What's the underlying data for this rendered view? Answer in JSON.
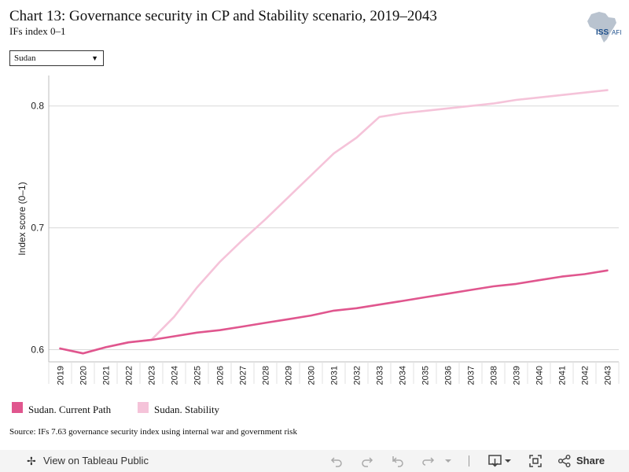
{
  "title": "Chart 13: Governance security in CP and Stability scenario, 2019–2043",
  "subtitle": "IFs index 0–1",
  "logo": {
    "text": "ISS",
    "text2": "AFI"
  },
  "country_select": {
    "value": "Sudan",
    "icon": "dropdown-arrow-icon"
  },
  "chart_data": {
    "type": "line",
    "ylabel": "Index score (0–1)",
    "xlabel": "",
    "ylim": [
      0.59,
      0.825
    ],
    "yticks": [
      0.6,
      0.7,
      0.8
    ],
    "ytick_labels": [
      "0.6",
      "0.7",
      "0.8"
    ],
    "grid": true,
    "x": [
      "2019",
      "2020",
      "2021",
      "2022",
      "2023",
      "2024",
      "2025",
      "2026",
      "2027",
      "2028",
      "2029",
      "2030",
      "2031",
      "2032",
      "2033",
      "2034",
      "2035",
      "2036",
      "2037",
      "2038",
      "2039",
      "2040",
      "2041",
      "2042",
      "2043"
    ],
    "series": [
      {
        "name": "Sudan. Current Path",
        "color": "#e0568e",
        "values": [
          0.601,
          0.597,
          0.602,
          0.606,
          0.608,
          0.611,
          0.614,
          0.616,
          0.619,
          0.622,
          0.625,
          0.628,
          0.632,
          0.634,
          0.637,
          0.64,
          0.643,
          0.646,
          0.649,
          0.652,
          0.654,
          0.657,
          0.66,
          0.662,
          0.665
        ]
      },
      {
        "name": "Sudan. Stability",
        "color": "#f5c3d9",
        "values": [
          0.601,
          0.597,
          0.602,
          0.606,
          0.608,
          0.627,
          0.651,
          0.672,
          0.69,
          0.707,
          0.725,
          0.743,
          0.761,
          0.774,
          0.791,
          0.794,
          0.796,
          0.798,
          0.8,
          0.802,
          0.805,
          0.807,
          0.809,
          0.811,
          0.813
        ]
      }
    ],
    "legend_position": "bottom-left"
  },
  "source": "Source: IFs 7.63 governance security index using internal war and government risk",
  "footer": {
    "view_label": "View on Tableau Public",
    "share_label": "Share"
  }
}
